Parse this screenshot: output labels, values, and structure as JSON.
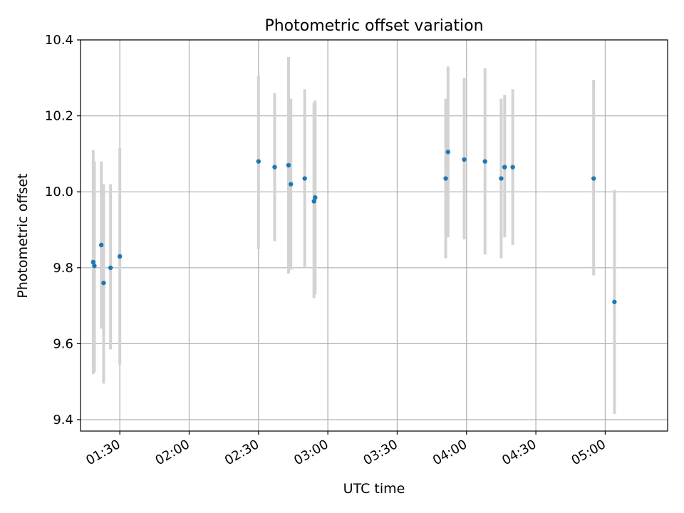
{
  "chart_data": {
    "type": "scatter",
    "title": "Photometric offset variation",
    "xlabel": "UTC time",
    "ylabel": "Photometric offset",
    "x_axis": {
      "kind": "time",
      "range": [
        "01:13",
        "05:27"
      ],
      "ticks": [
        "01:30",
        "02:00",
        "02:30",
        "03:00",
        "03:30",
        "04:00",
        "04:30",
        "05:00"
      ]
    },
    "y_axis": {
      "range": [
        9.37,
        10.4
      ],
      "ticks": [
        "9.4",
        "9.6",
        "9.8",
        "10.0",
        "10.2",
        "10.4"
      ]
    },
    "grid": true,
    "series": [
      {
        "points": [
          {
            "t": "01:18:30",
            "y": 9.815,
            "err_low": 9.52,
            "err_high": 10.11
          },
          {
            "t": "01:19:00",
            "y": 9.805,
            "err_low": 9.525,
            "err_high": 10.08
          },
          {
            "t": "01:22:00",
            "y": 9.86,
            "err_low": 9.64,
            "err_high": 10.08
          },
          {
            "t": "01:23:00",
            "y": 9.76,
            "err_low": 9.495,
            "err_high": 10.02
          },
          {
            "t": "01:26:00",
            "y": 9.8,
            "err_low": 9.585,
            "err_high": 10.02
          },
          {
            "t": "01:30:00",
            "y": 9.83,
            "err_low": 9.545,
            "err_high": 10.115
          },
          {
            "t": "02:30:00",
            "y": 10.08,
            "err_low": 9.85,
            "err_high": 10.305
          },
          {
            "t": "02:37:00",
            "y": 10.065,
            "err_low": 9.87,
            "err_high": 10.26
          },
          {
            "t": "02:43:00",
            "y": 10.07,
            "err_low": 9.785,
            "err_high": 10.355
          },
          {
            "t": "02:44:00",
            "y": 10.02,
            "err_low": 9.795,
            "err_high": 10.245
          },
          {
            "t": "02:50:00",
            "y": 10.035,
            "err_low": 9.8,
            "err_high": 10.27
          },
          {
            "t": "02:54:00",
            "y": 9.975,
            "err_low": 9.72,
            "err_high": 10.235
          },
          {
            "t": "02:54:30",
            "y": 9.985,
            "err_low": 9.73,
            "err_high": 10.24
          },
          {
            "t": "03:51:00",
            "y": 10.035,
            "err_low": 9.825,
            "err_high": 10.245
          },
          {
            "t": "03:52:00",
            "y": 10.105,
            "err_low": 9.88,
            "err_high": 10.33
          },
          {
            "t": "03:59:00",
            "y": 10.085,
            "err_low": 9.875,
            "err_high": 10.3
          },
          {
            "t": "04:08:00",
            "y": 10.08,
            "err_low": 9.835,
            "err_high": 10.325
          },
          {
            "t": "04:15:00",
            "y": 10.035,
            "err_low": 9.825,
            "err_high": 10.245
          },
          {
            "t": "04:16:30",
            "y": 10.065,
            "err_low": 9.88,
            "err_high": 10.255
          },
          {
            "t": "04:20:00",
            "y": 10.065,
            "err_low": 9.86,
            "err_high": 10.27
          },
          {
            "t": "04:55:00",
            "y": 10.035,
            "err_low": 9.78,
            "err_high": 10.295
          },
          {
            "t": "05:04:00",
            "y": 9.71,
            "err_low": 9.415,
            "err_high": 10.005
          }
        ]
      }
    ],
    "colors": {
      "point": "#1f77b4",
      "errorbar": "#d3d3d3",
      "grid": "#b0b0b0"
    }
  }
}
